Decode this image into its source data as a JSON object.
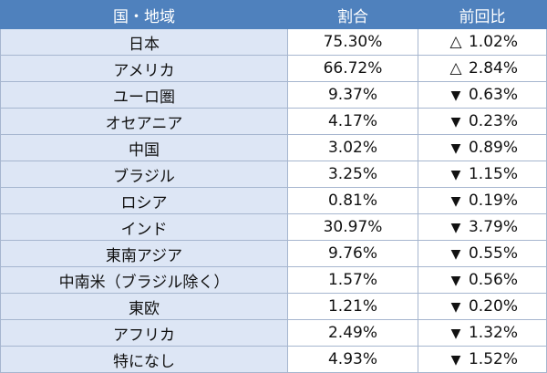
{
  "table": {
    "headers": {
      "region": "国・地域",
      "share": "割合",
      "yoy": "前回比"
    },
    "rows": [
      {
        "region": "日本",
        "share": "75.30%",
        "mark": "△",
        "change": "1.02%"
      },
      {
        "region": "アメリカ",
        "share": "66.72%",
        "mark": "△",
        "change": "2.84%"
      },
      {
        "region": "ユーロ圏",
        "share": "9.37%",
        "mark": "▼",
        "change": "0.63%"
      },
      {
        "region": "オセアニア",
        "share": "4.17%",
        "mark": "▼",
        "change": "0.23%"
      },
      {
        "region": "中国",
        "share": "3.02%",
        "mark": "▼",
        "change": "0.89%"
      },
      {
        "region": "ブラジル",
        "share": "3.25%",
        "mark": "▼",
        "change": "1.15%"
      },
      {
        "region": "ロシア",
        "share": "0.81%",
        "mark": "▼",
        "change": "0.19%"
      },
      {
        "region": "インド",
        "share": "30.97%",
        "mark": "▼",
        "change": "3.79%"
      },
      {
        "region": "東南アジア",
        "share": "9.76%",
        "mark": "▼",
        "change": "0.55%"
      },
      {
        "region": "中南米（ブラジル除く）",
        "share": "1.57%",
        "mark": "▼",
        "change": "0.56%"
      },
      {
        "region": "東欧",
        "share": "1.21%",
        "mark": "▼",
        "change": "0.20%"
      },
      {
        "region": "アフリカ",
        "share": "2.49%",
        "mark": "▼",
        "change": "1.32%"
      },
      {
        "region": "特になし",
        "share": "4.93%",
        "mark": "▼",
        "change": "1.52%"
      }
    ]
  },
  "colors": {
    "header_bg": "#4f81bd",
    "header_text": "#ffffff",
    "region_cell_bg": "#dde6f5",
    "border": "#a6b6cf"
  }
}
